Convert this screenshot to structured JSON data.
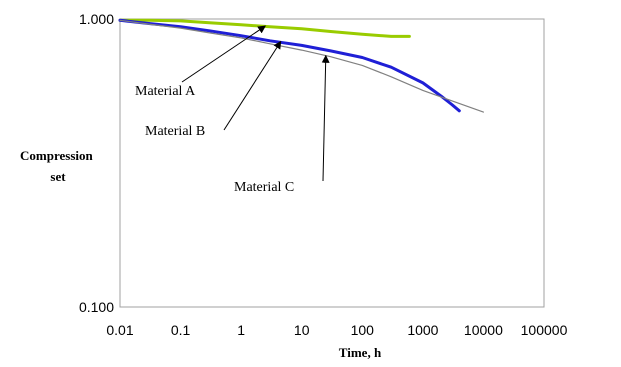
{
  "chart_data": {
    "type": "line",
    "xlabel": "Time, h",
    "ylabel_lines": [
      "Compression",
      "set"
    ],
    "x_scale": "log",
    "y_scale": "log",
    "xlim": [
      0.01,
      100000
    ],
    "ylim": [
      0.1,
      1.0
    ],
    "x_ticks": [
      {
        "value": 0.01,
        "label": "0.01"
      },
      {
        "value": 0.1,
        "label": "0.1"
      },
      {
        "value": 1,
        "label": "1"
      },
      {
        "value": 10,
        "label": "10"
      },
      {
        "value": 100,
        "label": "100"
      },
      {
        "value": 1000,
        "label": "1000"
      },
      {
        "value": 10000,
        "label": "10000"
      },
      {
        "value": 100000,
        "label": "100000"
      }
    ],
    "y_ticks": [
      {
        "value": 1.0,
        "label": "1.000"
      },
      {
        "value": 0.1,
        "label": "0.100"
      }
    ],
    "grid": false,
    "legend": "none",
    "series": [
      {
        "color": "#99cc00",
        "x": [
          0.01,
          0.03,
          0.1,
          0.3,
          1,
          3,
          10,
          30,
          100,
          300,
          600
        ],
        "y": [
          0.99,
          0.99,
          0.985,
          0.97,
          0.955,
          0.94,
          0.925,
          0.905,
          0.885,
          0.87,
          0.87
        ]
      },
      {
        "color": "#1f1fd6",
        "x": [
          0.01,
          0.03,
          0.1,
          0.3,
          1,
          3,
          10,
          30,
          100,
          300,
          1000,
          2000,
          3000,
          4000
        ],
        "y": [
          0.99,
          0.965,
          0.94,
          0.91,
          0.875,
          0.84,
          0.81,
          0.775,
          0.735,
          0.68,
          0.6,
          0.54,
          0.505,
          0.48
        ]
      },
      {
        "color": "#808080",
        "x": [
          0.01,
          0.03,
          0.1,
          0.3,
          1,
          3,
          10,
          30,
          100,
          300,
          1000,
          3000,
          10000
        ],
        "y": [
          0.99,
          0.96,
          0.93,
          0.895,
          0.86,
          0.82,
          0.78,
          0.74,
          0.69,
          0.63,
          0.565,
          0.52,
          0.475
        ]
      }
    ],
    "annotations": [
      {
        "text": "Material A",
        "anchor_x": 2.5,
        "anchor_y": 0.945
      },
      {
        "text": "Material B",
        "anchor_x": 4.5,
        "anchor_y": 0.835
      },
      {
        "text": "Material C",
        "anchor_x": 25,
        "anchor_y": 0.745
      }
    ]
  }
}
